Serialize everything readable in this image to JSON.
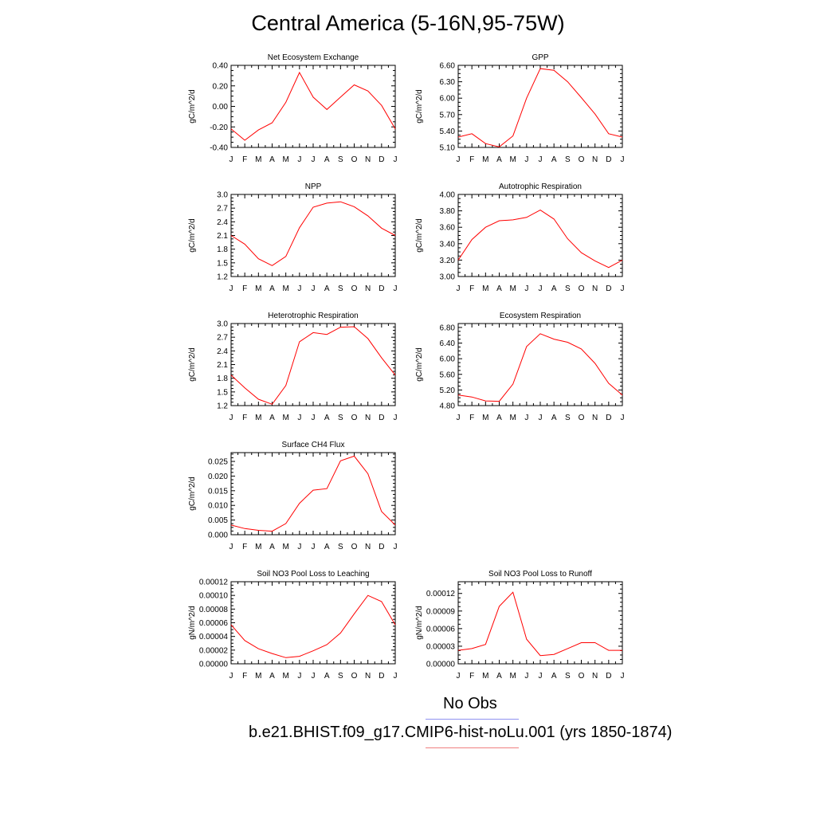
{
  "title": "Central America (5-16N,95-75W)",
  "legend": [
    {
      "label": "No Obs",
      "color": "#8f92f0"
    },
    {
      "label": "b.e21.BHIST.f09_g17.CMIP6-hist-noLu.001 (yrs 1850-1874)",
      "color": "#f07f7f"
    }
  ],
  "series_color": "#ff0000",
  "chart_data": [
    {
      "type": "line",
      "title": "Net Ecosystem Exchange",
      "ylabel": "gC/m^2/d",
      "categories": [
        "J",
        "F",
        "M",
        "A",
        "M",
        "J",
        "J",
        "A",
        "S",
        "O",
        "N",
        "D",
        "J"
      ],
      "ylim": [
        -0.4,
        0.4
      ],
      "yticks": [
        "-0.40",
        "-0.20",
        "0.00",
        "0.20",
        "0.40"
      ],
      "values": [
        -0.22,
        -0.33,
        -0.23,
        -0.16,
        0.04,
        0.33,
        0.09,
        -0.03,
        0.09,
        0.21,
        0.15,
        0.01,
        -0.22
      ]
    },
    {
      "type": "line",
      "title": "GPP",
      "ylabel": "gC/m^2/d",
      "categories": [
        "J",
        "F",
        "M",
        "A",
        "M",
        "J",
        "J",
        "A",
        "S",
        "O",
        "N",
        "D",
        "J"
      ],
      "ylim": [
        5.1,
        6.6
      ],
      "yticks": [
        "5.10",
        "5.40",
        "5.70",
        "6.00",
        "6.30",
        "6.60"
      ],
      "values": [
        5.29,
        5.35,
        5.17,
        5.11,
        5.31,
        6.0,
        6.54,
        6.51,
        6.3,
        6.01,
        5.71,
        5.35,
        5.29
      ]
    },
    {
      "type": "line",
      "title": "NPP",
      "ylabel": "gC/m^2/d",
      "categories": [
        "J",
        "F",
        "M",
        "A",
        "M",
        "J",
        "J",
        "A",
        "S",
        "O",
        "N",
        "D",
        "J"
      ],
      "ylim": [
        1.2,
        3.0
      ],
      "yticks": [
        "1.2",
        "1.5",
        "1.8",
        "2.1",
        "2.4",
        "2.7",
        "3.0"
      ],
      "values": [
        2.1,
        1.91,
        1.59,
        1.44,
        1.64,
        2.27,
        2.72,
        2.81,
        2.84,
        2.73,
        2.53,
        2.26,
        2.1
      ]
    },
    {
      "type": "line",
      "title": "Autotrophic Respiration",
      "ylabel": "gC/m^2/d",
      "categories": [
        "J",
        "F",
        "M",
        "A",
        "M",
        "J",
        "J",
        "A",
        "S",
        "O",
        "N",
        "D",
        "J"
      ],
      "ylim": [
        3.0,
        4.0
      ],
      "yticks": [
        "3.00",
        "3.20",
        "3.40",
        "3.60",
        "3.80",
        "4.00"
      ],
      "values": [
        3.2,
        3.45,
        3.6,
        3.68,
        3.69,
        3.72,
        3.81,
        3.7,
        3.46,
        3.29,
        3.19,
        3.11,
        3.2
      ]
    },
    {
      "type": "line",
      "title": "Heterotrophic Respiration",
      "ylabel": "gC/m^2/d",
      "categories": [
        "J",
        "F",
        "M",
        "A",
        "M",
        "J",
        "J",
        "A",
        "S",
        "O",
        "N",
        "D",
        "J"
      ],
      "ylim": [
        1.2,
        3.0
      ],
      "yticks": [
        "1.2",
        "1.5",
        "1.8",
        "2.1",
        "2.4",
        "2.7",
        "3.0"
      ],
      "values": [
        1.87,
        1.59,
        1.34,
        1.23,
        1.64,
        2.6,
        2.8,
        2.76,
        2.92,
        2.93,
        2.67,
        2.25,
        1.87
      ]
    },
    {
      "type": "line",
      "title": "Ecosystem Respiration",
      "ylabel": "gC/m^2/d",
      "categories": [
        "J",
        "F",
        "M",
        "A",
        "M",
        "J",
        "J",
        "A",
        "S",
        "O",
        "N",
        "D",
        "J"
      ],
      "ylim": [
        4.8,
        6.9
      ],
      "yticks": [
        "4.80",
        "5.20",
        "5.60",
        "6.00",
        "6.40",
        "6.80"
      ],
      "values": [
        5.07,
        5.02,
        4.92,
        4.91,
        5.35,
        6.31,
        6.64,
        6.5,
        6.42,
        6.25,
        5.88,
        5.37,
        5.07
      ]
    },
    {
      "type": "line",
      "title": "Surface CH4 Flux",
      "ylabel": "gC/m^2/d",
      "categories": [
        "J",
        "F",
        "M",
        "A",
        "M",
        "J",
        "J",
        "A",
        "S",
        "O",
        "N",
        "D",
        "J"
      ],
      "ylim": [
        0.0,
        0.028
      ],
      "yticks": [
        "0.000",
        "0.005",
        "0.010",
        "0.015",
        "0.020",
        "0.025"
      ],
      "values": [
        0.0033,
        0.0021,
        0.0015,
        0.0012,
        0.0038,
        0.0107,
        0.0152,
        0.0157,
        0.0252,
        0.0268,
        0.0208,
        0.0079,
        0.0033
      ]
    },
    {
      "type": "line",
      "title": "Soil NO3 Pool Loss to Leaching",
      "ylabel": "gN/m^2/d",
      "categories": [
        "J",
        "F",
        "M",
        "A",
        "M",
        "J",
        "J",
        "A",
        "S",
        "O",
        "N",
        "D",
        "J"
      ],
      "ylim": [
        0.0,
        0.00012
      ],
      "yticks": [
        "0.00000",
        "0.00002",
        "0.00004",
        "0.00006",
        "0.00008",
        "0.00010",
        "0.00012"
      ],
      "values": [
        5.7e-05,
        3.4e-05,
        2.2e-05,
        1.5e-05,
        9e-06,
        1.1e-05,
        1.9e-05,
        2.8e-05,
        4.5e-05,
        7.3e-05,
        0.0001,
        9.1e-05,
        5.7e-05
      ]
    },
    {
      "type": "line",
      "title": "Soil NO3 Pool Loss to Runoff",
      "ylabel": "gN/m^2/d",
      "categories": [
        "J",
        "F",
        "M",
        "A",
        "M",
        "J",
        "J",
        "A",
        "S",
        "O",
        "N",
        "D",
        "J"
      ],
      "ylim": [
        0.0,
        0.00014
      ],
      "yticks": [
        "0.00000",
        "0.00003",
        "0.00006",
        "0.00009",
        "0.00012"
      ],
      "values": [
        2.3e-05,
        2.6e-05,
        3.3e-05,
        9.8e-05,
        0.000122,
        4.2e-05,
        1.4e-05,
        1.6e-05,
        2.6e-05,
        3.6e-05,
        3.6e-05,
        2.3e-05,
        2.3e-05
      ]
    }
  ]
}
